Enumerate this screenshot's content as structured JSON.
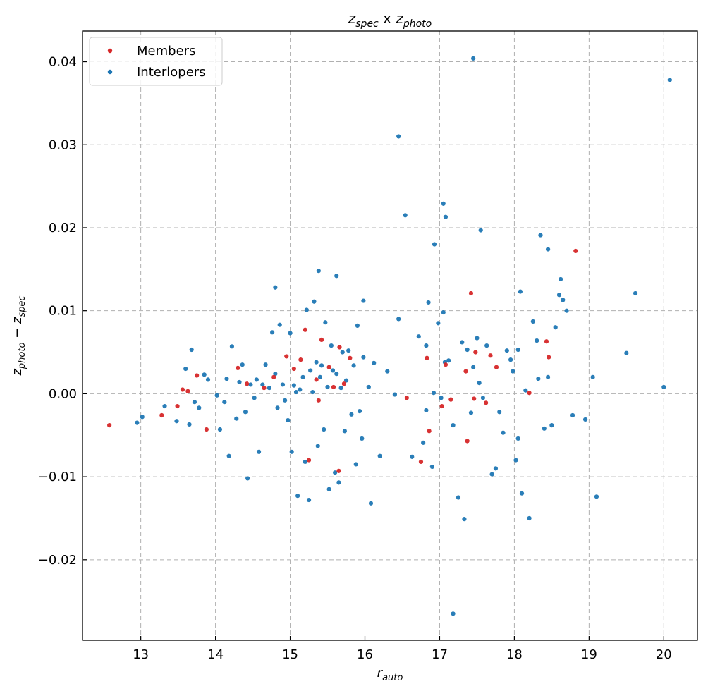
{
  "chart_data": {
    "type": "scatter",
    "title": "z_spec x z_photo",
    "title_parts": {
      "a_main": "z",
      "a_sub": "spec",
      "mid": " x ",
      "b_main": "z",
      "b_sub": "photo"
    },
    "xlabel_parts": {
      "main": "r",
      "sub": "auto"
    },
    "ylabel_parts": {
      "a_main": "z",
      "a_sub": "photo",
      "op": " − ",
      "b_main": "z",
      "b_sub": "spec"
    },
    "xlim": [
      12.22,
      20.45
    ],
    "ylim": [
      -0.0297,
      0.0437
    ],
    "x_ticks": [
      13,
      14,
      15,
      16,
      17,
      18,
      19,
      20
    ],
    "x_tick_labels": [
      "13",
      "14",
      "15",
      "16",
      "17",
      "18",
      "19",
      "20"
    ],
    "y_ticks": [
      -0.02,
      -0.01,
      0.0,
      0.01,
      0.02,
      0.03,
      0.04
    ],
    "y_tick_labels": [
      "−0.02",
      "−0.01",
      "0.00",
      "0.01",
      "0.02",
      "0.03",
      "0.04"
    ],
    "grid": true,
    "legend_position": "top-left",
    "colors": {
      "members": "#d62728",
      "interlopers": "#1f77b4"
    },
    "series": [
      {
        "name": "Members",
        "color": "#d62728",
        "x": [
          12.58,
          13.28,
          13.49,
          13.56,
          13.63,
          13.75,
          13.88,
          14.3,
          14.42,
          14.65,
          14.78,
          14.95,
          15.05,
          15.14,
          15.2,
          15.25,
          15.35,
          15.38,
          15.42,
          15.52,
          15.58,
          15.65,
          15.66,
          15.72,
          15.8,
          16.56,
          16.75,
          16.83,
          16.86,
          17.03,
          17.08,
          17.15,
          17.35,
          17.37,
          17.42,
          17.46,
          17.48,
          17.62,
          17.68,
          17.76,
          18.2,
          18.43,
          18.46,
          18.82
        ],
        "y": [
          -0.0038,
          -0.0026,
          -0.0015,
          0.0005,
          0.0003,
          0.0022,
          -0.0043,
          0.0031,
          0.0012,
          0.0007,
          0.002,
          0.0045,
          0.003,
          0.0041,
          0.0077,
          -0.008,
          0.0017,
          -0.0008,
          0.0065,
          0.0032,
          0.0008,
          -0.0093,
          0.0056,
          0.0012,
          0.0043,
          -0.0005,
          -0.0082,
          0.0043,
          -0.0045,
          -0.0015,
          0.0035,
          -0.0007,
          0.0027,
          -0.0057,
          0.0121,
          -0.0006,
          0.005,
          -0.0011,
          0.0046,
          0.0032,
          0.0001,
          0.0063,
          0.0044,
          0.0172
        ]
      },
      {
        "name": "Interlopers",
        "color": "#1f77b4",
        "x": [
          12.95,
          13.02,
          13.32,
          13.48,
          13.6,
          13.65,
          13.68,
          13.72,
          13.78,
          13.85,
          13.9,
          14.02,
          14.06,
          14.12,
          14.15,
          14.18,
          14.22,
          14.28,
          14.32,
          14.36,
          14.4,
          14.43,
          14.47,
          14.52,
          14.55,
          14.58,
          14.63,
          14.67,
          14.72,
          14.76,
          14.8,
          14.83,
          14.86,
          14.9,
          14.93,
          14.97,
          15.0,
          15.02,
          15.05,
          15.08,
          15.1,
          15.13,
          15.17,
          15.2,
          15.22,
          15.25,
          15.27,
          15.3,
          15.32,
          15.35,
          15.37,
          15.4,
          15.42,
          15.45,
          15.47,
          15.5,
          15.52,
          15.55,
          15.57,
          15.6,
          15.62,
          15.65,
          15.68,
          15.7,
          15.73,
          15.75,
          15.78,
          15.82,
          15.85,
          15.88,
          15.9,
          15.93,
          15.96,
          15.98,
          16.05,
          16.08,
          16.12,
          16.2,
          16.3,
          16.4,
          16.45,
          16.54,
          16.63,
          16.72,
          16.78,
          16.82,
          16.85,
          16.9,
          16.93,
          16.98,
          17.02,
          17.05,
          17.07,
          17.12,
          17.18,
          17.25,
          17.3,
          17.33,
          17.37,
          17.42,
          17.45,
          17.5,
          17.53,
          17.58,
          17.63,
          17.7,
          17.75,
          17.8,
          17.85,
          17.9,
          17.95,
          17.98,
          18.02,
          18.05,
          18.08,
          18.1,
          18.15,
          18.2,
          18.25,
          18.3,
          18.35,
          18.4,
          18.45,
          18.5,
          18.55,
          18.6,
          18.65,
          18.7,
          18.78,
          18.95,
          19.05,
          19.1,
          19.5,
          19.62,
          20.0,
          20.08,
          17.18,
          16.45,
          17.45,
          17.05,
          17.08,
          17.55,
          16.92,
          18.32,
          18.45,
          14.8,
          15.38,
          15.62,
          15.98,
          16.82,
          18.05,
          18.62
        ],
        "y": [
          -0.0035,
          -0.0028,
          -0.0015,
          -0.0033,
          0.003,
          -0.0037,
          0.0053,
          -0.001,
          -0.0017,
          0.0023,
          0.0017,
          -0.0002,
          -0.0043,
          -0.001,
          0.0018,
          -0.0075,
          0.0057,
          -0.003,
          0.0014,
          0.0035,
          -0.0022,
          -0.0102,
          0.0011,
          -0.0005,
          0.0017,
          -0.007,
          0.0011,
          0.0035,
          0.0007,
          0.0074,
          0.0024,
          -0.0017,
          0.0083,
          0.0011,
          -0.0008,
          -0.0032,
          0.0073,
          -0.007,
          0.001,
          0.0002,
          -0.0123,
          0.0005,
          0.002,
          -0.0082,
          0.0101,
          -0.0128,
          0.0028,
          0.0002,
          0.0111,
          0.0038,
          -0.0063,
          0.002,
          0.0034,
          -0.0043,
          0.0086,
          0.0008,
          -0.0115,
          0.0058,
          0.0028,
          -0.0095,
          0.0142,
          -0.0107,
          0.0007,
          0.005,
          -0.0045,
          0.0016,
          0.0052,
          -0.0025,
          0.0034,
          -0.0085,
          0.0082,
          -0.0021,
          -0.0054,
          0.0112,
          0.0008,
          -0.0132,
          0.0037,
          -0.0075,
          0.0027,
          -0.0001,
          0.009,
          0.0215,
          -0.0076,
          0.0069,
          -0.0059,
          -0.002,
          0.011,
          -0.0088,
          0.018,
          0.0085,
          -0.0005,
          0.0098,
          0.0038,
          0.004,
          -0.0038,
          -0.0125,
          0.0062,
          -0.0151,
          0.0053,
          -0.0023,
          0.0032,
          0.0067,
          0.0013,
          -0.0005,
          0.0058,
          -0.0097,
          -0.009,
          -0.0022,
          -0.0047,
          0.0052,
          0.0041,
          0.0027,
          -0.008,
          -0.0054,
          0.0123,
          -0.012,
          0.0004,
          -0.015,
          0.0087,
          0.0064,
          0.0191,
          -0.0042,
          0.0174,
          -0.0038,
          0.008,
          0.0119,
          0.0113,
          0.01,
          -0.0026,
          -0.0031,
          0.002,
          -0.0124,
          0.0049,
          0.0121,
          0.0008,
          0.0378,
          -0.0265,
          0.031,
          0.0404,
          0.0229,
          0.0213,
          0.0197,
          0.0001,
          0.0018,
          0.002,
          0.0128,
          0.0148,
          0.0024,
          0.0044,
          0.0058,
          0.0053,
          0.0138
        ]
      }
    ]
  }
}
